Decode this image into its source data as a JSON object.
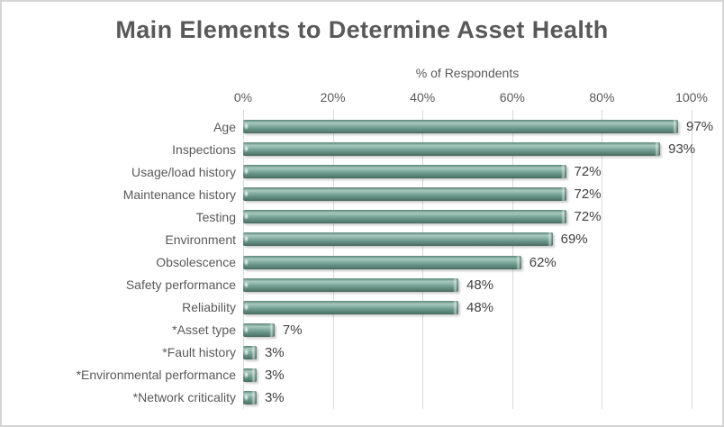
{
  "chart_data": {
    "type": "bar",
    "orientation": "horizontal",
    "title": "Main Elements to Determine Asset Health",
    "xlabel": "% of Respondents",
    "ylabel": "",
    "categories": [
      "Age",
      "Inspections",
      "Usage/load history",
      "Maintenance history",
      "Testing",
      "Environment",
      "Obsolescence",
      "Safety performance",
      "Reliability",
      "*Asset type",
      "*Fault history",
      "*Environmental performance",
      "*Network criticality"
    ],
    "values": [
      97,
      93,
      72,
      72,
      72,
      69,
      62,
      48,
      48,
      7,
      3,
      3,
      3
    ],
    "value_labels": [
      "97%",
      "93%",
      "72%",
      "72%",
      "72%",
      "69%",
      "62%",
      "48%",
      "48%",
      "7%",
      "3%",
      "3%",
      "3%"
    ],
    "x_ticks": [
      "0%",
      "20%",
      "40%",
      "60%",
      "80%",
      "100%"
    ],
    "xlim": [
      0,
      100
    ],
    "grid": "vertical-gridlines",
    "legend": "none",
    "colors": {
      "bar": "#6E9C8F",
      "bar_highlight": "#A9C8BD",
      "bar_dark_edge": "#47695E",
      "title_text": "#595959",
      "axis_text": "#595959",
      "value_text": "#404040",
      "gridline": "#D9D9D9",
      "frame_border": "#D5D5D5",
      "background": "#FFFFFF"
    }
  }
}
